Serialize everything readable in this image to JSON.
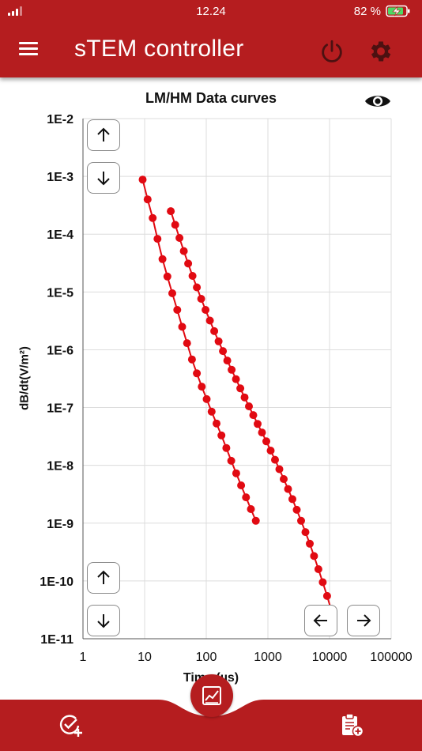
{
  "status_bar": {
    "time": "12.24",
    "battery_text": "82 %"
  },
  "app_bar": {
    "title": "sTEM controller"
  },
  "chart_panel": {
    "eye_icon": "eye-icon",
    "y_up_icon": "arrow-up-icon",
    "y_down_icon": "arrow-down-icon",
    "x_left_icon": "arrow-left-icon",
    "x_right_icon": "arrow-right-icon"
  },
  "chart_data": {
    "type": "scatter",
    "title": "LM/HM Data curves",
    "xlabel": "Time (µs)",
    "ylabel": "dB/dt(V/m²)",
    "x_scale": "log",
    "y_scale": "log",
    "xlim": [
      1,
      100000
    ],
    "ylim": [
      1e-11,
      0.01
    ],
    "x_ticks": [
      {
        "value": 1,
        "label": "1"
      },
      {
        "value": 10,
        "label": "10"
      },
      {
        "value": 100,
        "label": "100"
      },
      {
        "value": 1000,
        "label": "1000"
      },
      {
        "value": 10000,
        "label": "10000"
      },
      {
        "value": 100000,
        "label": "100000"
      }
    ],
    "y_ticks": [
      {
        "value": 0.01,
        "label": "1E-2"
      },
      {
        "value": 0.001,
        "label": "1E-3"
      },
      {
        "value": 0.0001,
        "label": "1E-4"
      },
      {
        "value": 1e-05,
        "label": "1E-5"
      },
      {
        "value": 1e-06,
        "label": "1E-6"
      },
      {
        "value": 1e-07,
        "label": "1E-7"
      },
      {
        "value": 1e-08,
        "label": "1E-8"
      },
      {
        "value": 1e-09,
        "label": "1E-9"
      },
      {
        "value": 1e-10,
        "label": "1E-10"
      },
      {
        "value": 1e-11,
        "label": "1E-11"
      }
    ],
    "grid": true,
    "legend": "none",
    "color": "#e10a12",
    "series": [
      {
        "x": [
          9.3,
          11.2,
          13.5,
          16.2,
          19.5,
          23.4,
          28.1,
          33.8,
          40.6,
          48.8,
          58.6,
          70.4,
          84.6,
          101.6,
          122.1,
          146.7,
          176.3,
          211.8,
          254.5,
          305.8,
          367.4,
          441.5,
          530.5,
          637.4
        ],
        "y": [
          0.00088,
          0.0004,
          0.00019,
          8.3e-05,
          3.7e-05,
          1.85e-05,
          9.5e-06,
          4.9e-06,
          2.5e-06,
          1.3e-06,
          6.8e-07,
          3.9e-07,
          2.3e-07,
          1.4e-07,
          8.5e-08,
          5.3e-08,
          3.3e-08,
          2e-08,
          1.2e-08,
          7.3e-09,
          4.5e-09,
          2.8e-09,
          1.75e-09,
          1.1e-09
        ]
      },
      {
        "x": [
          26.6,
          31.3,
          36.8,
          43.3,
          50.9,
          59.9,
          70.4,
          82.8,
          97.4,
          114.5,
          134.7,
          158.4,
          186.3,
          219.1,
          257.7,
          303.0,
          356.4,
          419.1,
          492.9,
          579.7,
          681.8,
          801.8,
          943.0,
          1109,
          1304,
          1534,
          1804,
          2122,
          2495,
          2935,
          3451,
          4059,
          4774,
          5614,
          6603,
          7765,
          9132,
          11500
        ],
        "y": [
          0.00025,
          0.000145,
          8.6e-05,
          5.1e-05,
          3.1e-05,
          1.9e-05,
          1.2e-05,
          7.6e-06,
          4.9e-06,
          3.2e-06,
          2.1e-06,
          1.4e-06,
          9.5e-07,
          6.5e-07,
          4.5e-07,
          3.1e-07,
          2.15e-07,
          1.5e-07,
          1.05e-07,
          7.4e-08,
          5.2e-08,
          3.7e-08,
          2.6e-08,
          1.8e-08,
          1.25e-08,
          8.6e-09,
          5.8e-09,
          3.9e-09,
          2.6e-09,
          1.7e-09,
          1.1e-09,
          7e-10,
          4.4e-10,
          2.7e-10,
          1.6e-10,
          9.5e-11,
          5.5e-11,
          2.4e-11
        ]
      }
    ]
  }
}
